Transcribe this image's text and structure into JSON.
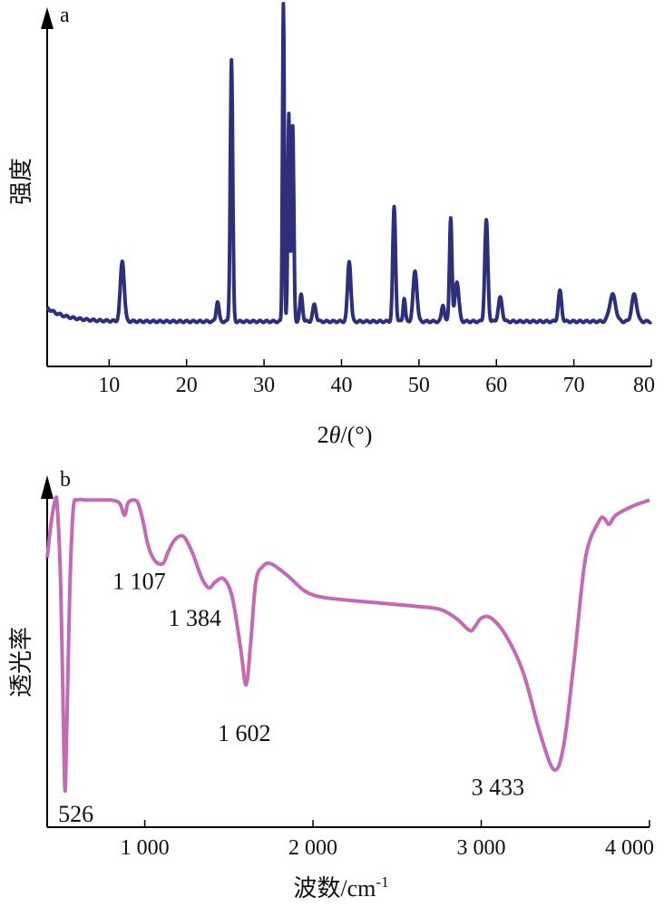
{
  "chart_data": [
    {
      "id": "xrd",
      "type": "line",
      "panel_label": "a",
      "xlabel": "2θ/(°)",
      "xlabel_main": "2",
      "xlabel_italic": "θ",
      "xlabel_tail": "/(°)",
      "ylabel": "强度",
      "xlim": [
        2,
        80
      ],
      "ylim": [
        0,
        100
      ],
      "xticks": [
        10,
        20,
        30,
        40,
        50,
        60,
        70,
        80
      ],
      "xtick_labels": [
        "10",
        "20",
        "30",
        "40",
        "50",
        "60",
        "70",
        "80"
      ],
      "color": "#2e2f7a",
      "baseline": 8,
      "peaks": [
        {
          "x": 11.7,
          "h": 18,
          "w": 0.35
        },
        {
          "x": 24.0,
          "h": 6,
          "w": 0.25
        },
        {
          "x": 25.8,
          "h": 78,
          "w": 0.22
        },
        {
          "x": 32.5,
          "h": 95,
          "w": 0.16
        },
        {
          "x": 33.2,
          "h": 62,
          "w": 0.18
        },
        {
          "x": 33.7,
          "h": 58,
          "w": 0.2
        },
        {
          "x": 34.8,
          "h": 8,
          "w": 0.25
        },
        {
          "x": 36.5,
          "h": 5,
          "w": 0.3
        },
        {
          "x": 41.0,
          "h": 18,
          "w": 0.3
        },
        {
          "x": 46.8,
          "h": 34,
          "w": 0.25
        },
        {
          "x": 48.1,
          "h": 7,
          "w": 0.2
        },
        {
          "x": 49.5,
          "h": 15,
          "w": 0.35
        },
        {
          "x": 53.1,
          "h": 5,
          "w": 0.25
        },
        {
          "x": 54.1,
          "h": 31,
          "w": 0.22
        },
        {
          "x": 54.9,
          "h": 12,
          "w": 0.35
        },
        {
          "x": 58.7,
          "h": 30,
          "w": 0.28
        },
        {
          "x": 60.5,
          "h": 7,
          "w": 0.35
        },
        {
          "x": 68.2,
          "h": 9,
          "w": 0.3
        },
        {
          "x": 75.0,
          "h": 8,
          "w": 0.55
        },
        {
          "x": 77.8,
          "h": 8,
          "w": 0.45
        }
      ]
    },
    {
      "id": "ftir",
      "type": "line",
      "panel_label": "b",
      "xlabel": "波数/cm-1",
      "xlabel_main": "波数/cm",
      "xlabel_sup": "-1",
      "ylabel": "透光率",
      "xlim": [
        420,
        4000
      ],
      "ylim": [
        0,
        100
      ],
      "xticks": [
        1000,
        2000,
        3000,
        4000
      ],
      "xtick_labels": [
        "1 000",
        "2 000",
        "3 000",
        "4 000"
      ],
      "color": "#c26ab4",
      "points": [
        [
          420,
          80
        ],
        [
          445,
          92
        ],
        [
          468,
          99
        ],
        [
          480,
          97
        ],
        [
          500,
          72
        ],
        [
          515,
          30
        ],
        [
          526,
          3
        ],
        [
          537,
          25
        ],
        [
          555,
          70
        ],
        [
          575,
          96
        ],
        [
          600,
          99
        ],
        [
          650,
          99
        ],
        [
          700,
          99
        ],
        [
          750,
          99
        ],
        [
          800,
          99
        ],
        [
          850,
          98
        ],
        [
          880,
          94
        ],
        [
          900,
          98
        ],
        [
          930,
          99
        ],
        [
          960,
          98
        ],
        [
          990,
          92
        ],
        [
          1020,
          84
        ],
        [
          1060,
          79
        ],
        [
          1107,
          78
        ],
        [
          1140,
          82
        ],
        [
          1180,
          86
        ],
        [
          1230,
          87
        ],
        [
          1280,
          82
        ],
        [
          1320,
          76
        ],
        [
          1350,
          72
        ],
        [
          1384,
          70
        ],
        [
          1420,
          72
        ],
        [
          1470,
          73
        ],
        [
          1520,
          67
        ],
        [
          1570,
          50
        ],
        [
          1602,
          38
        ],
        [
          1630,
          52
        ],
        [
          1660,
          72
        ],
        [
          1700,
          77
        ],
        [
          1750,
          78
        ],
        [
          1850,
          74
        ],
        [
          1950,
          69
        ],
        [
          2050,
          67
        ],
        [
          2200,
          66
        ],
        [
          2400,
          65
        ],
        [
          2600,
          64
        ],
        [
          2750,
          63
        ],
        [
          2850,
          60
        ],
        [
          2930,
          56
        ],
        [
          2960,
          57
        ],
        [
          3000,
          60
        ],
        [
          3060,
          60
        ],
        [
          3150,
          54
        ],
        [
          3250,
          42
        ],
        [
          3350,
          22
        ],
        [
          3433,
          10
        ],
        [
          3490,
          18
        ],
        [
          3550,
          45
        ],
        [
          3620,
          80
        ],
        [
          3700,
          92
        ],
        [
          3730,
          93
        ],
        [
          3760,
          91
        ],
        [
          3800,
          94
        ],
        [
          3900,
          97
        ],
        [
          4000,
          99
        ]
      ],
      "annotations": [
        {
          "text": "526",
          "x": 526
        },
        {
          "text": "1 107",
          "x": 1107
        },
        {
          "text": "1 384",
          "x": 1384
        },
        {
          "text": "1 602",
          "x": 1602
        },
        {
          "text": "3 433",
          "x": 3433
        }
      ]
    }
  ]
}
